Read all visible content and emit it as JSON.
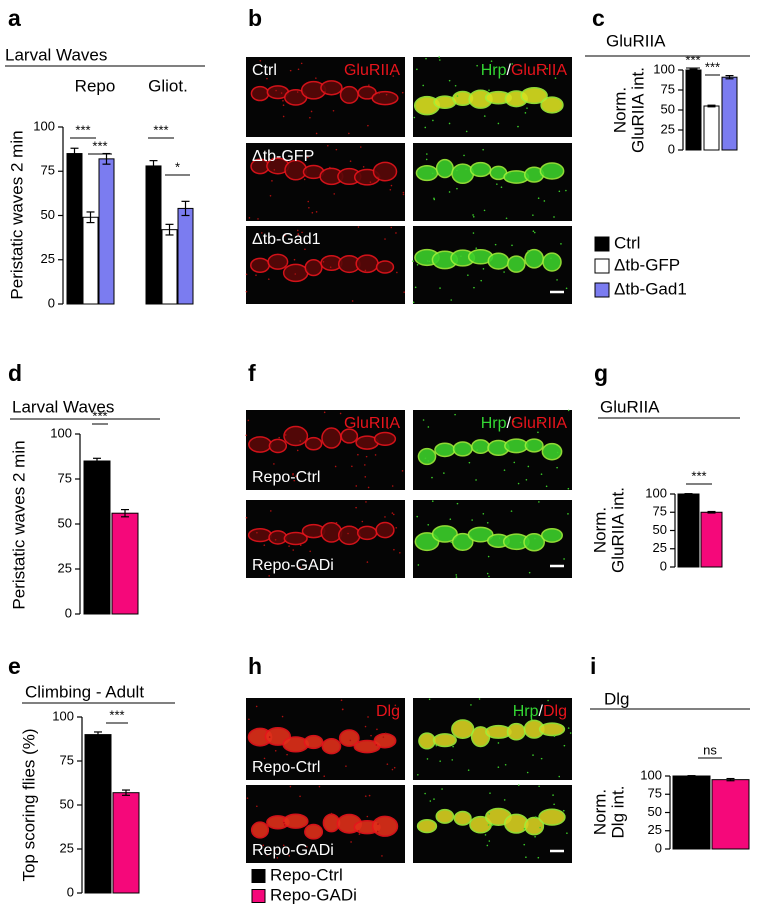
{
  "chart_data": [
    {
      "type": "bar",
      "letter": "a",
      "title": "Larval Waves",
      "categories": [
        "Repo",
        "Gliot."
      ],
      "ylabel": [
        "Peristatic waves 2 min"
      ],
      "ylim": [
        0,
        100
      ],
      "yticks": [
        0,
        25,
        50,
        75,
        100
      ],
      "series": [
        {
          "name": "Ctrl",
          "color": "#000000",
          "values": [
            85,
            78
          ],
          "errors": [
            3,
            3
          ]
        },
        {
          "name": "Δtb-GFP",
          "color": "#ffffff",
          "values": [
            49,
            42
          ],
          "errors": [
            3,
            3
          ]
        },
        {
          "name": "Δtb-Gad1",
          "color": "#7b7cf0",
          "values": [
            82,
            54
          ],
          "errors": [
            3,
            4
          ]
        }
      ],
      "annotations": [
        "***",
        "***",
        "***",
        "*"
      ]
    },
    {
      "type": "bar",
      "letter": "c",
      "title": "GluRIIA",
      "ylabel": [
        "Norm.",
        "GluRIIA int."
      ],
      "ylim": [
        0,
        100
      ],
      "yticks": [
        0,
        25,
        50,
        75,
        100
      ],
      "series": [
        {
          "color": "#000000",
          "values": [
            100
          ],
          "errors": [
            1
          ]
        },
        {
          "color": "#ffffff",
          "values": [
            55
          ],
          "errors": [
            1
          ]
        },
        {
          "color": "#7b7cf0",
          "values": [
            91
          ],
          "errors": [
            2
          ]
        }
      ],
      "annotations": [
        "***",
        "***"
      ]
    },
    {
      "type": "bar",
      "letter": "d",
      "title": "Larval Waves",
      "ylabel": [
        "Peristatic waves 2 min"
      ],
      "ylim": [
        0,
        100
      ],
      "yticks": [
        0,
        25,
        50,
        75,
        100
      ],
      "series": [
        {
          "name": "Repo-Ctrl",
          "color": "#000000",
          "values": [
            85
          ],
          "errors": [
            1.5
          ]
        },
        {
          "name": "Repo-GADi",
          "color": "#f5087a",
          "values": [
            56
          ],
          "errors": [
            2
          ]
        }
      ],
      "annotations": [
        "***"
      ]
    },
    {
      "type": "bar",
      "letter": "g",
      "title": "GluRIIA",
      "ylabel": [
        "Norm.",
        "GluRIIA int."
      ],
      "ylim": [
        0,
        100
      ],
      "yticks": [
        0,
        25,
        50,
        75,
        100
      ],
      "series": [
        {
          "color": "#000000",
          "values": [
            100
          ],
          "errors": [
            0.5
          ]
        },
        {
          "color": "#f5087a",
          "values": [
            75
          ],
          "errors": [
            1
          ]
        }
      ],
      "annotations": [
        "***"
      ]
    },
    {
      "type": "bar",
      "letter": "e",
      "title": "Climbing - Adult",
      "ylabel": [
        "Top scoring flies (%)"
      ],
      "ylim": [
        0,
        100
      ],
      "yticks": [
        0,
        25,
        50,
        75,
        100
      ],
      "series": [
        {
          "color": "#000000",
          "values": [
            90
          ],
          "errors": [
            1.5
          ]
        },
        {
          "color": "#f5087a",
          "values": [
            57
          ],
          "errors": [
            1.5
          ]
        }
      ],
      "annotations": [
        "***"
      ]
    },
    {
      "type": "bar",
      "letter": "i",
      "title": "Dlg",
      "ylabel": [
        "Norm.",
        "Dlg int."
      ],
      "ylim": [
        0,
        100
      ],
      "yticks": [
        0,
        25,
        50,
        75,
        100
      ],
      "series": [
        {
          "color": "#000000",
          "values": [
            100
          ],
          "errors": [
            0.5
          ]
        },
        {
          "color": "#f5087a",
          "values": [
            95
          ],
          "errors": [
            1.5
          ]
        }
      ],
      "annotations": [
        "ns"
      ]
    }
  ],
  "images": [
    {
      "letter": "b",
      "left_label": [
        {
          "text": "GluRIIA",
          "color": "#e8141c"
        }
      ],
      "right_label": [
        {
          "text": "Hrp",
          "color": "#33d633"
        },
        {
          "text": "/",
          "color": "#ffffff"
        },
        {
          "text": "GluRIIA",
          "color": "#e8141c"
        }
      ],
      "rows": [
        "Ctrl",
        "Δtb-GFP",
        "Δtb-Gad1"
      ]
    },
    {
      "letter": "f",
      "left_label": [
        {
          "text": "GluRIIA",
          "color": "#e8141c"
        }
      ],
      "right_label": [
        {
          "text": "Hrp",
          "color": "#33d633"
        },
        {
          "text": "/",
          "color": "#ffffff"
        },
        {
          "text": "GluRIIA",
          "color": "#e8141c"
        }
      ],
      "rows": [
        "Repo-Ctrl",
        "Repo-GADi"
      ]
    },
    {
      "letter": "h",
      "left_label": [
        {
          "text": "Dlg",
          "color": "#e8141c"
        }
      ],
      "right_label": [
        {
          "text": "Hrp",
          "color": "#33d633"
        },
        {
          "text": "/",
          "color": "#ffffff"
        },
        {
          "text": "Dlg",
          "color": "#e8141c"
        }
      ],
      "rows": [
        "Repo-Ctrl",
        "Repo-GADi"
      ]
    }
  ]
}
